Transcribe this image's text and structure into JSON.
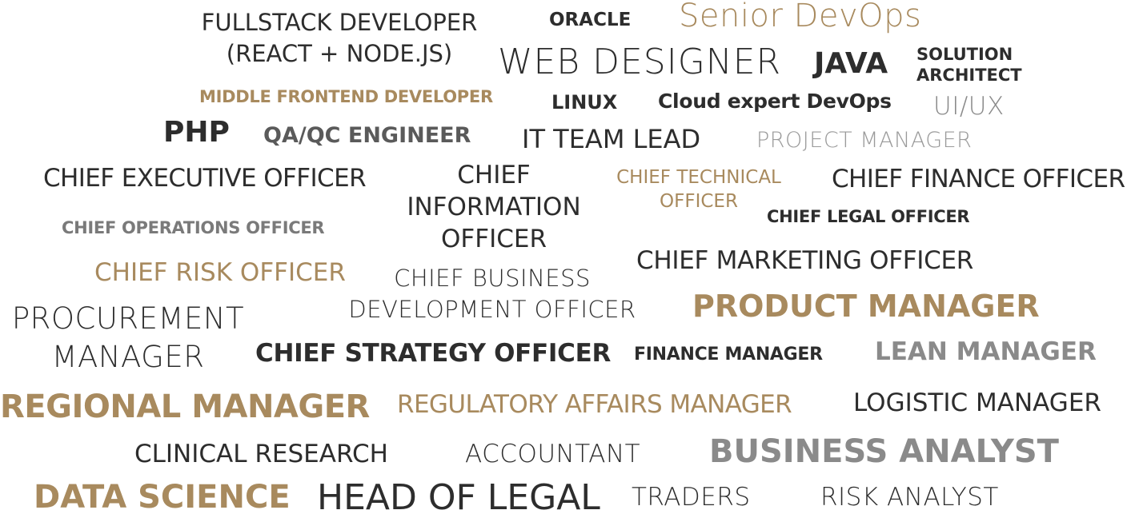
{
  "colors": {
    "dark": "#2d2d2d",
    "gold": "#a88a5e",
    "gray": "#8a8a8a",
    "lightgray": "#9a9a9a"
  },
  "words": {
    "fullstack_line1": "FULLSTACK DEVELOPER",
    "fullstack_line2": "(REACT + NODE.JS)",
    "oracle": "ORACLE",
    "senior_devops": "Senior DevOps",
    "web_designer": "WEB DESIGNER",
    "java": "JAVA",
    "solution_line1": "SOLUTION",
    "solution_line2": "ARCHITECT",
    "middle_frontend": "MIDDLE FRONTEND DEVELOPER",
    "linux": "LINUX",
    "cloud_expert": "Cloud expert DevOps",
    "uiux": "UI/UX",
    "php": "PHP",
    "qa_qc": "QA/QC ENGINEER",
    "it_team_lead": "IT TEAM LEAD",
    "project_manager": "PROJECT MANAGER",
    "ceo": "CHIEF EXECUTIVE OFFICER",
    "cio_line1": "CHIEF",
    "cio_line2": "INFORMATION",
    "cio_line3": "OFFICER",
    "cto_line1": "CHIEF TECHNICAL",
    "cto_line2": "OFFICER",
    "cfo": "CHIEF FINANCE OFFICER",
    "coo": "CHIEF OPERATIONS OFFICER",
    "clo": "CHIEF LEGAL OFFICER",
    "cro": "CHIEF RISK OFFICER",
    "cbdo_line1": "CHIEF BUSINESS",
    "cbdo_line2": "DEVELOPMENT OFFICER",
    "cmo": "CHIEF MARKETING OFFICER",
    "product_manager": "PRODUCT MANAGER",
    "procurement_line1": "PROCUREMENT",
    "procurement_line2": "MANAGER",
    "cso": "CHIEF STRATEGY OFFICER",
    "finance_manager": "FINANCE MANAGER",
    "lean_manager": "LEAN MANAGER",
    "regional_manager": "REGIONAL MANAGER",
    "regulatory_affairs": "REGULATORY AFFAIRS MANAGER",
    "logistic_manager": "LOGISTIC MANAGER",
    "clinical_research": "CLINICAL RESEARCH",
    "accountant": "ACCOUNTANT",
    "business_analyst": "BUSINESS ANALYST",
    "data_science": "DATA SCIENCE",
    "head_of_legal": "HEAD OF LEGAL",
    "traders": "TRADERS",
    "risk_analyst": "RISK ANALYST"
  }
}
